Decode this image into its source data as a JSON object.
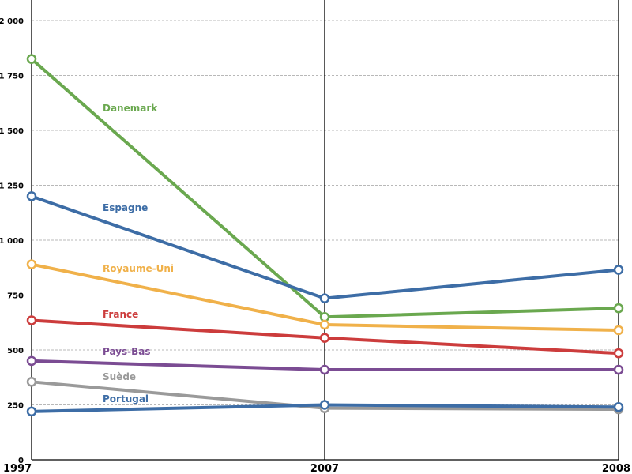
{
  "chart_data": {
    "type": "line",
    "x": [
      "1997",
      "2007",
      "2008"
    ],
    "ylim": [
      0,
      2000
    ],
    "y_ticks": [
      0,
      250,
      500,
      750,
      1000,
      1250,
      1500,
      1750,
      2000
    ],
    "y_tick_labels": [
      "0",
      "250",
      "500",
      "750",
      "1 000",
      "1 250",
      "1 500",
      "1 750",
      "2 000"
    ],
    "grid": true,
    "legend": "labels placed beside series lines",
    "series": [
      {
        "name": "Danemark",
        "color": "#6aa84f",
        "values": [
          1825,
          650,
          690
        ]
      },
      {
        "name": "Espagne",
        "color": "#3d6da6",
        "values": [
          1200,
          735,
          865
        ]
      },
      {
        "name": "Royaume-Uni",
        "color": "#f0b14a",
        "values": [
          890,
          615,
          590
        ]
      },
      {
        "name": "France",
        "color": "#cc3c3c",
        "values": [
          635,
          555,
          485
        ]
      },
      {
        "name": "Pays-Bas",
        "color": "#7b4c93",
        "values": [
          450,
          410,
          410
        ]
      },
      {
        "name": "Suède",
        "color": "#9a9a9a",
        "values": [
          355,
          235,
          230
        ]
      },
      {
        "name": "Portugal",
        "color": "#3d6da6",
        "values": [
          220,
          250,
          240
        ]
      }
    ]
  }
}
